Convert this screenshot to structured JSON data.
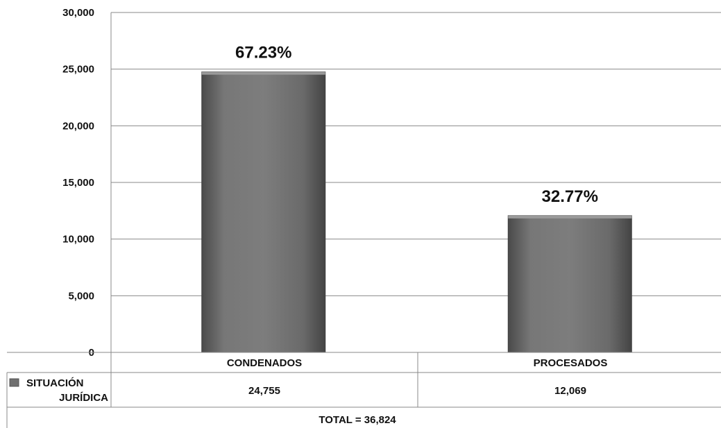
{
  "chart_data": {
    "type": "bar",
    "categories": [
      "CONDENADOS",
      "PROCESADOS"
    ],
    "series": [
      {
        "name": "SITUACIÓN JURÍDICA",
        "values": [
          24755,
          12069
        ]
      }
    ],
    "data_labels": [
      "67.23%",
      "32.77%"
    ],
    "table_values": [
      "24,755",
      "12,069"
    ],
    "total_label": "TOTAL = 36,824",
    "ylim": [
      0,
      30000
    ],
    "yticks": [
      "0",
      "5,000",
      "10,000",
      "15,000",
      "20,000",
      "25,000",
      "30,000"
    ],
    "grid": true,
    "legend": "data-table",
    "bar_color": "#6f6f6f"
  }
}
